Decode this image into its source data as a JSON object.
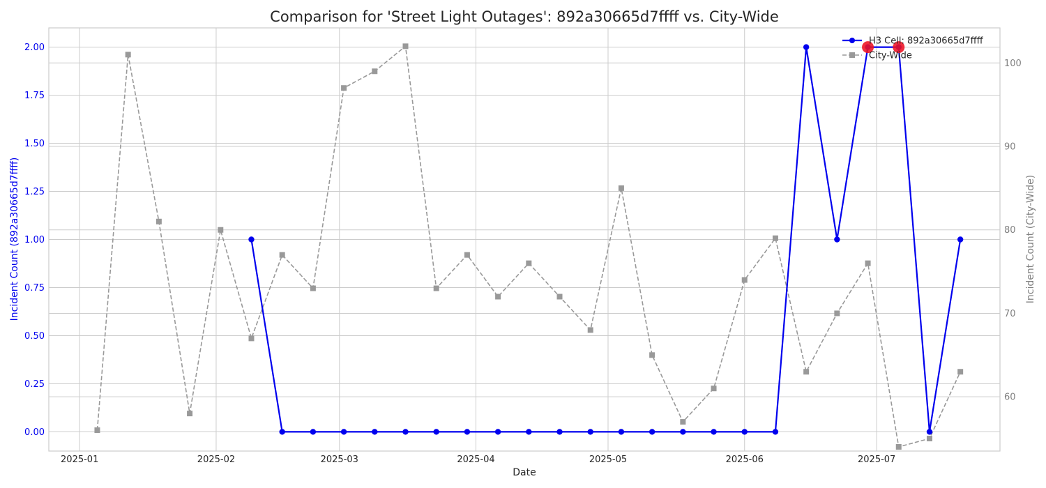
{
  "chart_data": {
    "type": "line",
    "title": "Comparison for 'Street Light Outages': 892a30665d7ffff vs. City-Wide",
    "xlabel": "Date",
    "ylabel_left": "Incident Count (892a30665d7ffff)",
    "ylabel_right": "Incident Count (City-Wide)",
    "x_ticks": [
      "2025-01",
      "2025-02",
      "2025-03",
      "2025-04",
      "2025-05",
      "2025-06",
      "2025-07"
    ],
    "x_tick_dates": [
      "2025-01-01",
      "2025-02-01",
      "2025-03-01",
      "2025-04-01",
      "2025-05-01",
      "2025-06-01",
      "2025-07-01"
    ],
    "xlim": [
      "2024-12-25",
      "2025-07-29"
    ],
    "y_left_ticks": [
      "0.00",
      "0.25",
      "0.50",
      "0.75",
      "1.00",
      "1.25",
      "1.50",
      "1.75",
      "2.00"
    ],
    "y_left_lim": [
      -0.1,
      2.1
    ],
    "y_right_ticks": [
      "60",
      "70",
      "80",
      "90",
      "100"
    ],
    "y_right_lim": [
      53.5,
      104.2
    ],
    "grid": true,
    "legend_position": "top-right",
    "series": [
      {
        "name": "H3 Cell: 892a30665d7ffff",
        "axis": "left",
        "color": "#0000ee",
        "marker": "circle",
        "style": "solid",
        "points": [
          [
            "2025-02-09",
            1
          ],
          [
            "2025-02-16",
            0
          ],
          [
            "2025-02-23",
            0
          ],
          [
            "2025-03-02",
            0
          ],
          [
            "2025-03-09",
            0
          ],
          [
            "2025-03-16",
            0
          ],
          [
            "2025-03-23",
            0
          ],
          [
            "2025-03-30",
            0
          ],
          [
            "2025-04-06",
            0
          ],
          [
            "2025-04-13",
            0
          ],
          [
            "2025-04-20",
            0
          ],
          [
            "2025-04-27",
            0
          ],
          [
            "2025-05-04",
            0
          ],
          [
            "2025-05-11",
            0
          ],
          [
            "2025-05-18",
            0
          ],
          [
            "2025-05-25",
            0
          ],
          [
            "2025-06-01",
            0
          ],
          [
            "2025-06-08",
            0
          ],
          [
            "2025-06-15",
            2
          ],
          [
            "2025-06-22",
            1
          ],
          [
            "2025-06-29",
            2
          ],
          [
            "2025-07-06",
            2
          ],
          [
            "2025-07-13",
            0
          ],
          [
            "2025-07-20",
            1
          ]
        ]
      },
      {
        "name": "City-Wide",
        "axis": "right",
        "color": "#999999",
        "marker": "square",
        "style": "dashed",
        "points": [
          [
            "2025-01-05",
            56
          ],
          [
            "2025-01-12",
            101
          ],
          [
            "2025-01-19",
            81
          ],
          [
            "2025-01-26",
            58
          ],
          [
            "2025-02-02",
            80
          ],
          [
            "2025-02-09",
            67
          ],
          [
            "2025-02-16",
            77
          ],
          [
            "2025-02-23",
            73
          ],
          [
            "2025-03-02",
            97
          ],
          [
            "2025-03-09",
            99
          ],
          [
            "2025-03-16",
            102
          ],
          [
            "2025-03-23",
            73
          ],
          [
            "2025-03-30",
            77
          ],
          [
            "2025-04-06",
            72
          ],
          [
            "2025-04-13",
            76
          ],
          [
            "2025-04-20",
            72
          ],
          [
            "2025-04-27",
            68
          ],
          [
            "2025-05-04",
            85
          ],
          [
            "2025-05-11",
            65
          ],
          [
            "2025-05-18",
            57
          ],
          [
            "2025-05-25",
            61
          ],
          [
            "2025-06-01",
            74
          ],
          [
            "2025-06-08",
            79
          ],
          [
            "2025-06-15",
            63
          ],
          [
            "2025-06-22",
            70
          ],
          [
            "2025-06-29",
            76
          ],
          [
            "2025-07-06",
            54
          ],
          [
            "2025-07-13",
            55
          ],
          [
            "2025-07-20",
            63
          ]
        ]
      }
    ],
    "highlighted_points": {
      "series": "H3 Cell: 892a30665d7ffff",
      "color": "#ee1122",
      "points": [
        [
          "2025-06-29",
          2
        ],
        [
          "2025-07-06",
          2
        ]
      ]
    }
  }
}
